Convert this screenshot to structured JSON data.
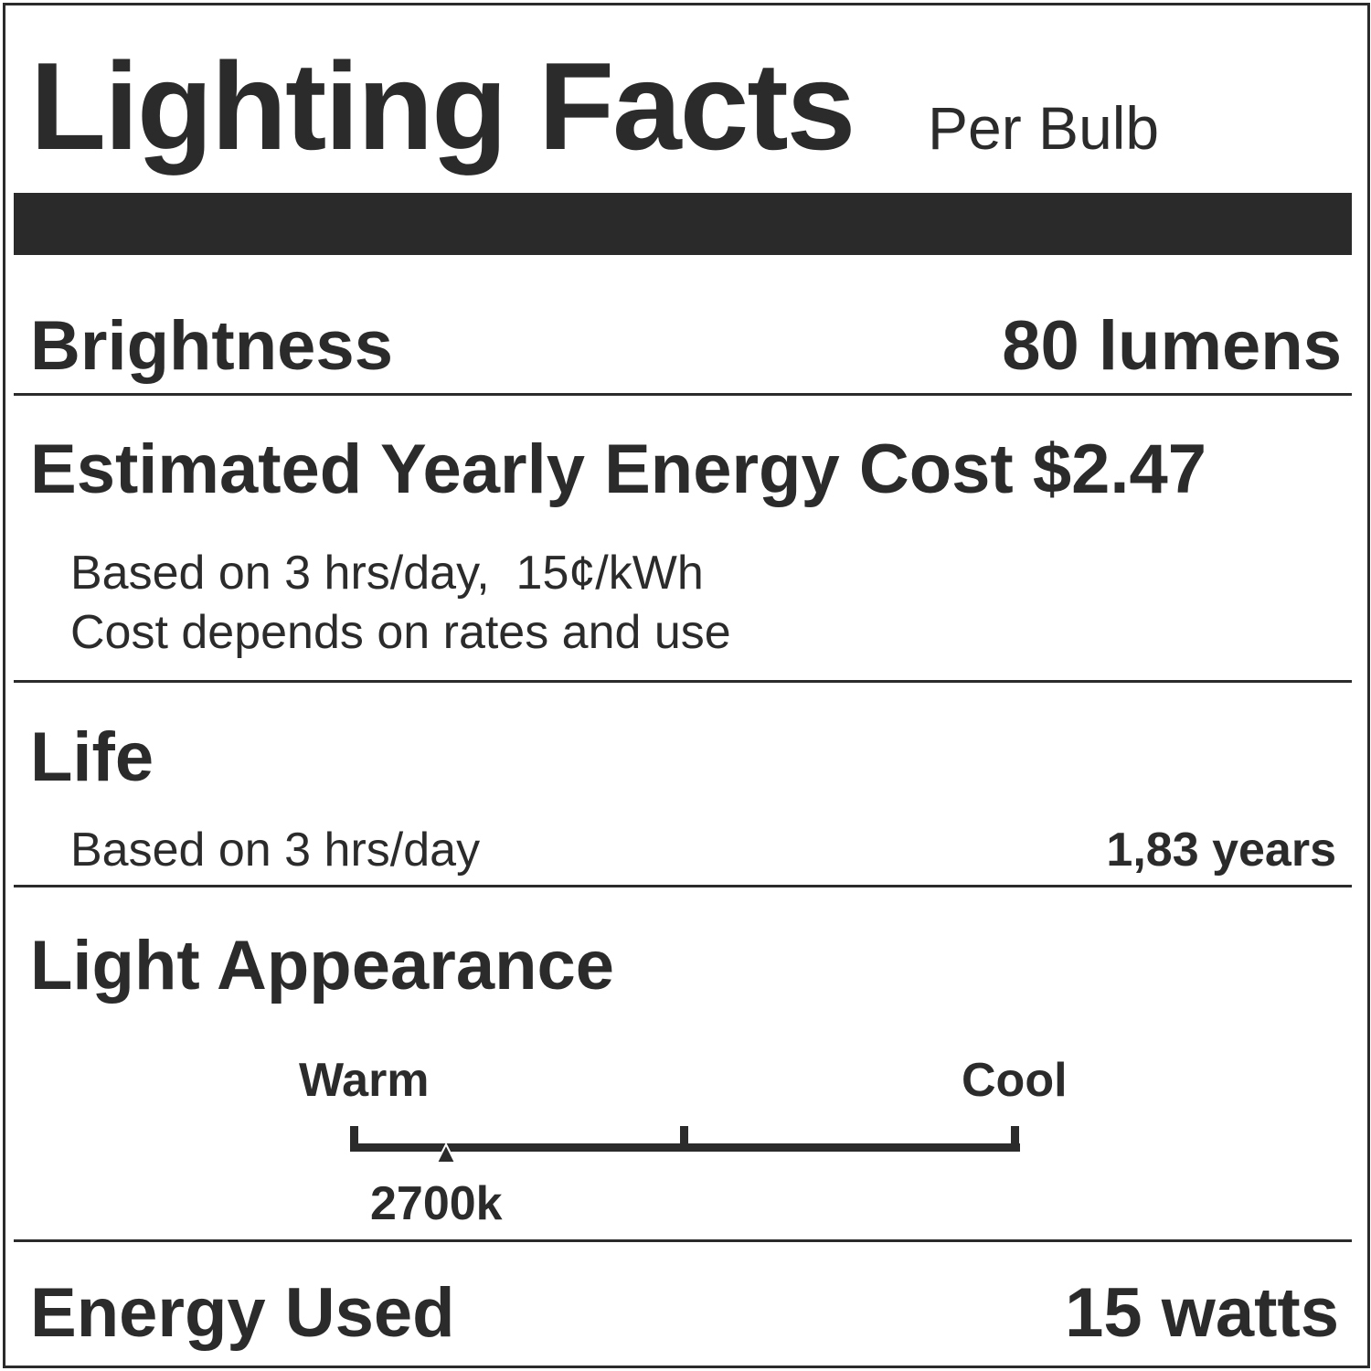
{
  "header": {
    "title": "Lighting Facts",
    "subtitle": "Per Bulb"
  },
  "brightness": {
    "label": "Brightness",
    "value": "80 lumens"
  },
  "energy_cost": {
    "label": "Estimated Yearly Energy Cost $2.47",
    "note1": "Based on 3 hrs/day,  15¢/kWh",
    "note2": "Cost depends on rates and use"
  },
  "life": {
    "label": "Life",
    "note": "Based on 3 hrs/day",
    "value": "1,83 years"
  },
  "light_appearance": {
    "label": "Light Appearance",
    "warm_label": "Warm",
    "cool_label": "Cool",
    "value": "2700k",
    "scale_position_fraction": 0.14
  },
  "energy_used": {
    "label": "Energy Used",
    "value": "15 watts"
  },
  "colors": {
    "ink": "#2b2b2b",
    "background": "#ffffff"
  }
}
